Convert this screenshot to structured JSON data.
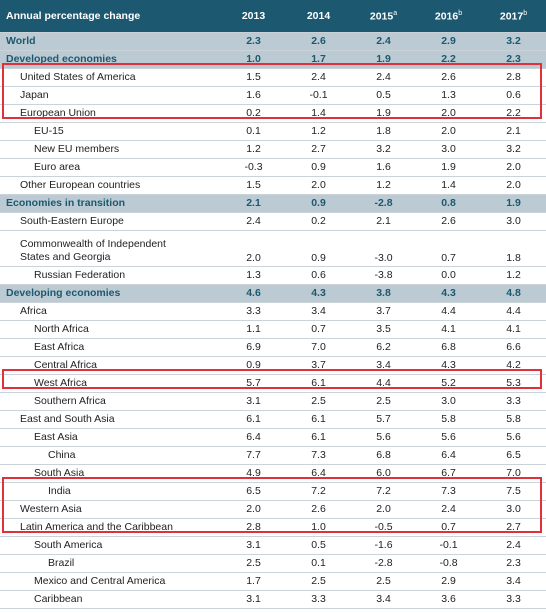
{
  "table": {
    "header": {
      "title": "Annual percentage change",
      "columns": [
        {
          "year": "2013"
        },
        {
          "year": "2014"
        },
        {
          "year": "2015",
          "note": "a"
        },
        {
          "year": "2016",
          "note": "b"
        },
        {
          "year": "2017",
          "note": "b"
        }
      ]
    },
    "rows": [
      {
        "label": "World",
        "level": 0,
        "group": true,
        "values": [
          "2.3",
          "2.6",
          "2.4",
          "2.9",
          "3.2"
        ]
      },
      {
        "label": "Developed economies",
        "level": 0,
        "group": true,
        "values": [
          "1.0",
          "1.7",
          "1.9",
          "2.2",
          "2.3"
        ]
      },
      {
        "label": "United States of America",
        "level": 1,
        "values": [
          "1.5",
          "2.4",
          "2.4",
          "2.6",
          "2.8"
        ]
      },
      {
        "label": "Japan",
        "level": 1,
        "values": [
          "1.6",
          "-0.1",
          "0.5",
          "1.3",
          "0.6"
        ]
      },
      {
        "label": "European Union",
        "level": 1,
        "values": [
          "0.2",
          "1.4",
          "1.9",
          "2.0",
          "2.2"
        ]
      },
      {
        "label": "EU-15",
        "level": 2,
        "values": [
          "0.1",
          "1.2",
          "1.8",
          "2.0",
          "2.1"
        ]
      },
      {
        "label": "New EU members",
        "level": 2,
        "values": [
          "1.2",
          "2.7",
          "3.2",
          "3.0",
          "3.2"
        ]
      },
      {
        "label": "Euro area",
        "level": 2,
        "values": [
          "-0.3",
          "0.9",
          "1.6",
          "1.9",
          "2.0"
        ]
      },
      {
        "label": "Other European countries",
        "level": 1,
        "values": [
          "1.5",
          "2.0",
          "1.2",
          "1.4",
          "2.0"
        ]
      },
      {
        "label": "Economies in transition",
        "level": 0,
        "group": true,
        "values": [
          "2.1",
          "0.9",
          "-2.8",
          "0.8",
          "1.9"
        ]
      },
      {
        "label": "South-Eastern Europe",
        "level": 1,
        "values": [
          "2.4",
          "0.2",
          "2.1",
          "2.6",
          "3.0"
        ]
      },
      {
        "label": "Commonwealth of Independent States and Georgia",
        "level": 1,
        "values": [
          "2.0",
          "0.9",
          "-3.0",
          "0.7",
          "1.8"
        ]
      },
      {
        "label": "Russian Federation",
        "level": 2,
        "values": [
          "1.3",
          "0.6",
          "-3.8",
          "0.0",
          "1.2"
        ]
      },
      {
        "label": "Developing economies",
        "level": 0,
        "group": true,
        "values": [
          "4.6",
          "4.3",
          "3.8",
          "4.3",
          "4.8"
        ]
      },
      {
        "label": "Africa",
        "level": 1,
        "values": [
          "3.3",
          "3.4",
          "3.7",
          "4.4",
          "4.4"
        ]
      },
      {
        "label": "North Africa",
        "level": 2,
        "values": [
          "1.1",
          "0.7",
          "3.5",
          "4.1",
          "4.1"
        ]
      },
      {
        "label": "East Africa",
        "level": 2,
        "values": [
          "6.9",
          "7.0",
          "6.2",
          "6.8",
          "6.6"
        ]
      },
      {
        "label": "Central Africa",
        "level": 2,
        "values": [
          "0.9",
          "3.7",
          "3.4",
          "4.3",
          "4.2"
        ]
      },
      {
        "label": "West Africa",
        "level": 2,
        "values": [
          "5.7",
          "6.1",
          "4.4",
          "5.2",
          "5.3"
        ]
      },
      {
        "label": "Southern Africa",
        "level": 2,
        "values": [
          "3.1",
          "2.5",
          "2.5",
          "3.0",
          "3.3"
        ]
      },
      {
        "label": "East and South Asia",
        "level": 1,
        "values": [
          "6.1",
          "6.1",
          "5.7",
          "5.8",
          "5.8"
        ]
      },
      {
        "label": "East Asia",
        "level": 2,
        "values": [
          "6.4",
          "6.1",
          "5.6",
          "5.6",
          "5.6"
        ]
      },
      {
        "label": "China",
        "level": 3,
        "values": [
          "7.7",
          "7.3",
          "6.8",
          "6.4",
          "6.5"
        ]
      },
      {
        "label": "South Asia",
        "level": 2,
        "values": [
          "4.9",
          "6.4",
          "6.0",
          "6.7",
          "7.0"
        ]
      },
      {
        "label": "India",
        "level": 3,
        "values": [
          "6.5",
          "7.2",
          "7.2",
          "7.3",
          "7.5"
        ]
      },
      {
        "label": "Western Asia",
        "level": 1,
        "values": [
          "2.0",
          "2.6",
          "2.0",
          "2.4",
          "3.0"
        ]
      },
      {
        "label": "Latin America and the Caribbean",
        "level": 1,
        "values": [
          "2.8",
          "1.0",
          "-0.5",
          "0.7",
          "2.7"
        ]
      },
      {
        "label": "South America",
        "level": 2,
        "values": [
          "3.1",
          "0.5",
          "-1.6",
          "-0.1",
          "2.4"
        ]
      },
      {
        "label": "Brazil",
        "level": 3,
        "values": [
          "2.5",
          "0.1",
          "-2.8",
          "-0.8",
          "2.3"
        ]
      },
      {
        "label": "Mexico and Central America",
        "level": 2,
        "values": [
          "1.7",
          "2.5",
          "2.5",
          "2.9",
          "3.4"
        ]
      },
      {
        "label": "Caribbean",
        "level": 2,
        "values": [
          "3.1",
          "3.3",
          "3.4",
          "3.6",
          "3.3"
        ]
      }
    ]
  }
}
